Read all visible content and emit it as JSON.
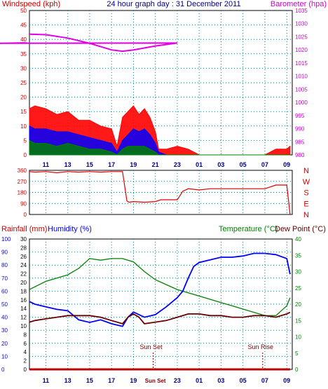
{
  "colors": {
    "wind": "#ff0000",
    "gust_blue": "#0000ff",
    "avg_green": "#008000",
    "barometer": "#e000e0",
    "direction": "#e00000",
    "temperature": "#008000",
    "humidity": "#0000ff",
    "dewpoint": "#660000",
    "rain": "#c00000",
    "grid": "#008080",
    "axis_left": "#cc0000",
    "axis_right_baro": "#cc00cc",
    "axis_temp": "#008000",
    "axis_hum": "#0000ff",
    "axis_rain": "#000000",
    "time_axis": "#000080",
    "sun_marker": "#800000"
  },
  "chart_data": [
    {
      "type": "line",
      "title": "24 hour graph day : 31 December 2011",
      "ylabel_left": "Windspeed (kph)",
      "ylabel_right": "Barometer (hpa)",
      "ylim_left": [
        0,
        50
      ],
      "ylim_right": [
        980,
        1035
      ],
      "yticks_left": [
        "0",
        "5",
        "10",
        "15",
        "20",
        "25",
        "30",
        "35",
        "40",
        "45",
        "50"
      ],
      "yticks_right": [
        "980",
        "985",
        "990",
        "995",
        "1000",
        "1005",
        "1010",
        "1015",
        "1020",
        "1025",
        "1030",
        "1035"
      ],
      "xticks": [
        "11",
        "13",
        "15",
        "17",
        "19",
        "21",
        "23",
        "01",
        "03",
        "05",
        "07",
        "09"
      ],
      "x_hours": [
        9.5,
        33.5
      ],
      "grid": true,
      "series": [
        {
          "name": "Barometer (hpa)",
          "axis": "right",
          "x": [
            9.5,
            11,
            13,
            15,
            17,
            18,
            19,
            21,
            23,
            1,
            3,
            5,
            7,
            9,
            9.3
          ],
          "values": [
            1026,
            1025.8,
            1024.5,
            1022.5,
            1020,
            1019.5,
            1020,
            1021.5,
            1022.6,
            1022.5,
            1022.2,
            1022.3,
            1022.5,
            1022.7,
            1022.6
          ]
        },
        {
          "name": "Windspeed",
          "axis": "left",
          "x": [
            9.5,
            10,
            11,
            12,
            13,
            14,
            15,
            16,
            17,
            17.5,
            18,
            18.5,
            19,
            19.5,
            20,
            20.5,
            21,
            21.3,
            22,
            23,
            24,
            25,
            26,
            27,
            28,
            29,
            30,
            31,
            32,
            33,
            33.3
          ],
          "values": [
            16,
            17,
            16,
            14,
            15,
            12,
            12,
            10,
            9,
            3,
            13,
            15,
            17,
            14,
            16,
            13,
            8,
            2,
            2,
            3,
            2,
            0,
            0,
            0,
            0,
            0,
            0,
            0,
            2,
            2,
            3
          ]
        },
        {
          "name": "Average wind",
          "axis": "left",
          "x": [
            9.5,
            10,
            11,
            12,
            13,
            14,
            15,
            16,
            17,
            17.5,
            18,
            18.5,
            19,
            19.5,
            20,
            20.5,
            21,
            21.3,
            22,
            24,
            28,
            32,
            33.3
          ],
          "values": [
            10,
            9,
            9,
            8,
            8,
            7,
            6,
            5,
            4,
            1,
            5,
            7,
            9,
            8,
            9,
            7,
            4,
            1,
            0,
            0,
            0,
            0,
            0
          ]
        },
        {
          "name": "Low wind",
          "axis": "left",
          "x": [
            9.5,
            10,
            11,
            12,
            13,
            14,
            15,
            16,
            17,
            17.5,
            18,
            18.5,
            19,
            19.5,
            20,
            20.5,
            21,
            21.3,
            22,
            33.3
          ],
          "values": [
            5,
            4,
            4,
            3,
            4,
            3,
            2,
            2,
            1,
            0,
            2,
            3,
            3,
            3,
            3,
            2,
            1,
            0,
            0,
            0
          ]
        }
      ]
    },
    {
      "type": "line",
      "ylabel_right": "Wind direction",
      "ylim": [
        0,
        360
      ],
      "yticks": [
        "0",
        "90",
        "180",
        "270",
        "360"
      ],
      "compass_labels": [
        "N",
        "W",
        "S",
        "E",
        "N"
      ],
      "xticks": [
        "11",
        "13",
        "15",
        "17",
        "19",
        "21",
        "23",
        "01",
        "03",
        "05",
        "07",
        "09"
      ],
      "series": [
        {
          "name": "Direction",
          "x": [
            9.5,
            10,
            11,
            12,
            13,
            14,
            15,
            16,
            17,
            18,
            18.4,
            18.6,
            19,
            20,
            21,
            21.5,
            23,
            23.5,
            24,
            25,
            26,
            27,
            28,
            29,
            30,
            31,
            32,
            33,
            33.3
          ],
          "values": [
            350,
            345,
            350,
            340,
            350,
            345,
            350,
            345,
            350,
            350,
            110,
            100,
            105,
            100,
            105,
            120,
            120,
            190,
            210,
            200,
            210,
            210,
            210,
            210,
            210,
            210,
            240,
            240,
            0
          ]
        }
      ]
    },
    {
      "type": "line",
      "ylabel_left": "Rainfall (mm)",
      "ylabel_left2": "Humidity (%)",
      "ylabel_right": "Temperature (°C)",
      "ylabel_right2": "Dew Point (°C)",
      "ylim_rain": [
        0,
        30
      ],
      "ylim_humidity": [
        0,
        100
      ],
      "ylim_temp": [
        0,
        40
      ],
      "yticks_humidity": [
        "0",
        "10",
        "20",
        "30",
        "40",
        "50",
        "60",
        "70",
        "80",
        "90",
        "100"
      ],
      "yticks_rain": [
        "0",
        "2",
        "4",
        "6",
        "8",
        "10",
        "12",
        "14",
        "16",
        "18",
        "20",
        "22",
        "24",
        "26",
        "28",
        "30"
      ],
      "yticks_temp": [
        "0",
        "5",
        "10",
        "15",
        "20",
        "25",
        "30",
        "35",
        "40"
      ],
      "xticks": [
        "11",
        "13",
        "15",
        "17",
        "19",
        "Sun Set",
        "23",
        "01",
        "03",
        "05",
        "07",
        "09"
      ],
      "annotations": [
        "Sun Set",
        "Sun Rise"
      ],
      "series": [
        {
          "name": "Temperature",
          "axis": "temp",
          "x": [
            9.5,
            11,
            13,
            14,
            15,
            16,
            17,
            18,
            19,
            20,
            21,
            22,
            23,
            24,
            25,
            26,
            27,
            28,
            29,
            30,
            31,
            32,
            33,
            33.3
          ],
          "values": [
            24.5,
            27,
            29,
            31,
            34,
            33.5,
            34,
            34,
            33,
            30,
            27.5,
            26,
            24.5,
            23.5,
            22.5,
            21.5,
            20.5,
            19.5,
            18.5,
            17.5,
            16.5,
            16.5,
            19.5,
            22
          ]
        },
        {
          "name": "Humidity",
          "axis": "humidity",
          "x": [
            9.5,
            10,
            11,
            12,
            13,
            14,
            15,
            16,
            17,
            18,
            18.5,
            19,
            20,
            21,
            22,
            23,
            23.5,
            24,
            24.5,
            25,
            26,
            27,
            28,
            29,
            30,
            31,
            32,
            33,
            33.3
          ],
          "values": [
            52,
            50,
            48,
            46,
            45,
            38,
            36,
            38,
            35,
            33,
            40,
            44,
            40,
            42,
            48,
            55,
            60,
            70,
            79,
            82,
            84,
            86,
            86,
            87,
            89,
            89,
            88,
            85,
            73
          ]
        },
        {
          "name": "Dew Point",
          "axis": "temp",
          "x": [
            9.5,
            10,
            11,
            12,
            13,
            14,
            15,
            16,
            17,
            18,
            18.5,
            19,
            19.5,
            20,
            21,
            22,
            23,
            24,
            25,
            26,
            27,
            28,
            29,
            30,
            31,
            32,
            33,
            33.3
          ],
          "values": [
            14.5,
            15,
            15.5,
            16,
            16.5,
            16.5,
            16.5,
            16,
            15,
            14,
            16,
            17,
            16,
            14,
            14.5,
            15,
            16,
            17,
            17,
            16.5,
            16.5,
            16,
            16,
            16.5,
            16.5,
            16,
            17,
            17.5
          ]
        },
        {
          "name": "Rainfall",
          "axis": "rain",
          "x": [
            9.5,
            33.3
          ],
          "values": [
            0,
            0
          ]
        }
      ]
    }
  ]
}
